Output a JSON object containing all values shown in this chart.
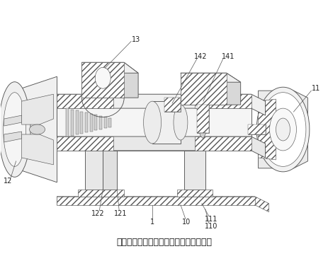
{
  "title": "图为本实用新型旋进旋涡流量计的剖视图",
  "title_fontsize": 9,
  "bg_color": "#ffffff",
  "lc": "#555555",
  "lc_dark": "#333333",
  "fig_width": 4.63,
  "fig_height": 3.86,
  "dpi": 100,
  "hatch_fc": "#ffffff",
  "gray_light": "#e8e8e8",
  "gray_mid": "#d4d4d4",
  "gray_dark": "#c0c0c0",
  "face_top": "#f0f0f0",
  "face_side": "#e0e0e0",
  "face_front": "#d8d8d8"
}
